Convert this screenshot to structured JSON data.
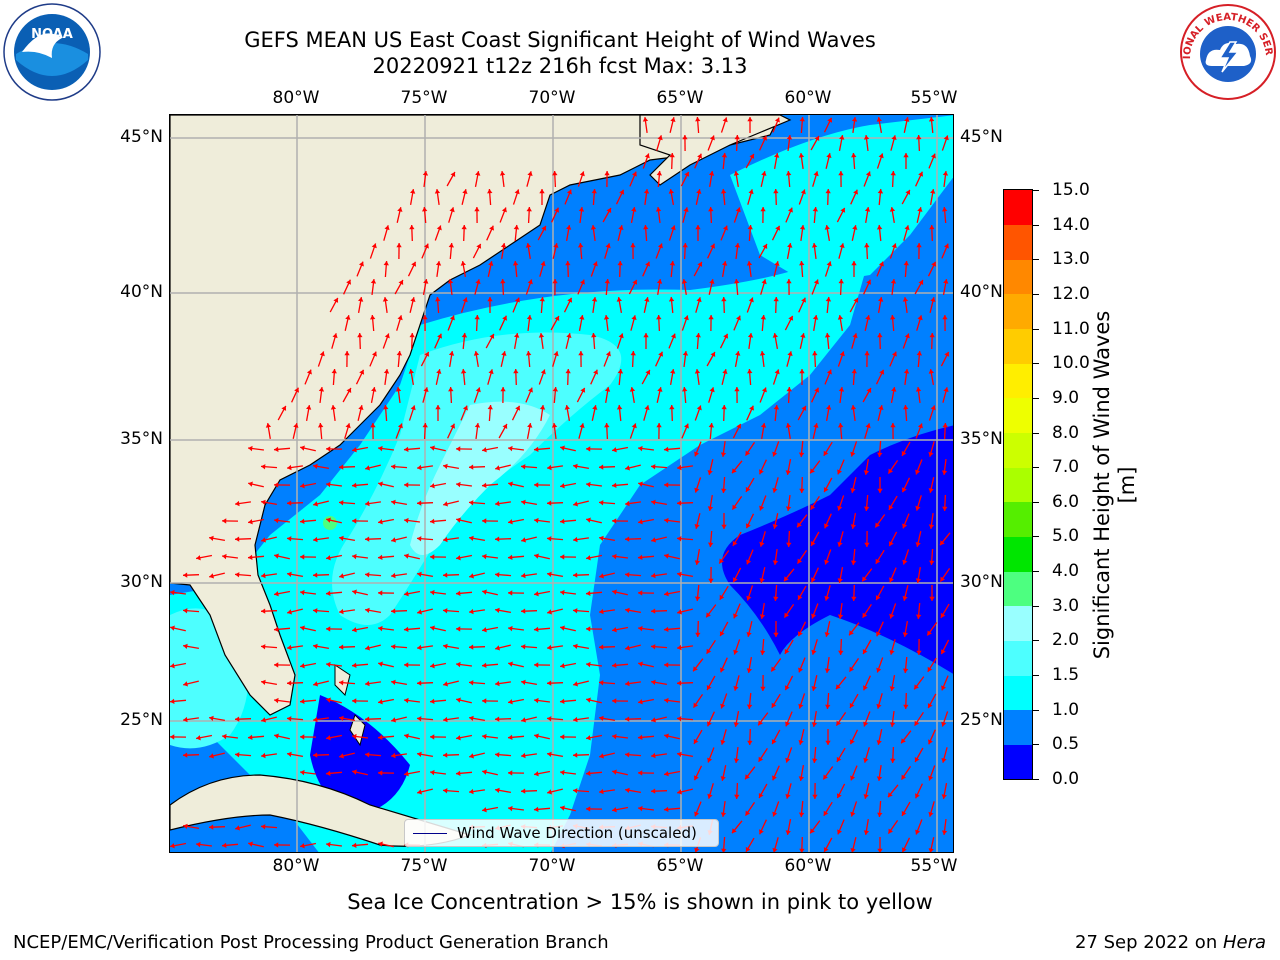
{
  "title": {
    "line1": "GEFS MEAN US East Coast Significant Height of Wind Waves",
    "line2": "20220921 t12z 216h fcst   Max: 3.13"
  },
  "logos": {
    "left": "NOAA",
    "right": "NATIONAL WEATHER SERVICE"
  },
  "map": {
    "lon_ticks": [
      "80°W",
      "75°W",
      "70°W",
      "65°W",
      "60°W",
      "55°W"
    ],
    "lat_ticks": [
      "45°N",
      "40°N",
      "35°N",
      "30°N",
      "25°N"
    ],
    "lon_values": [
      -80,
      -75,
      -70,
      -65,
      -60,
      -55
    ],
    "lat_values": [
      45,
      40,
      35,
      30,
      25
    ],
    "lon_range": [
      -85,
      -54.7
    ],
    "lat_range": [
      20.3,
      46.7
    ],
    "grid": true,
    "land_color": "#efedda",
    "arrow_color": "#ff0000"
  },
  "legend": {
    "label": "Wind Wave Direction (unscaled)",
    "line_color": "#00008b",
    "placement": "lower-center"
  },
  "colorbar": {
    "title": "Significant Height of Wind Waves [m]",
    "labels": [
      "15.0",
      "14.0",
      "13.0",
      "12.0",
      "11.0",
      "10.0",
      "9.0",
      "8.0",
      "7.0",
      "6.0",
      "5.0",
      "4.0",
      "3.0",
      "2.0",
      "1.5",
      "1.0",
      "0.5",
      "0.0"
    ],
    "bounds": [
      0,
      0.5,
      1,
      1.5,
      2,
      3,
      4,
      5,
      6,
      7,
      8,
      9,
      10,
      11,
      12,
      13,
      14,
      15
    ],
    "colors": [
      "#0000ff",
      "#0080ff",
      "#00ffff",
      "#4dffff",
      "#99ffff",
      "#4dff80",
      "#00e600",
      "#55ee00",
      "#aaff00",
      "#ccff00",
      "#eeff00",
      "#ffee00",
      "#ffcc00",
      "#ffaa00",
      "#ff8800",
      "#ff5500",
      "#ff0000"
    ]
  },
  "footnote": "Sea Ice Concentration > 15% is shown in pink to yellow",
  "credit": "NCEP/EMC/Verification Post Processing Product Generation Branch",
  "date": {
    "text": "27 Sep 2022 on ",
    "machine": "Hera"
  }
}
